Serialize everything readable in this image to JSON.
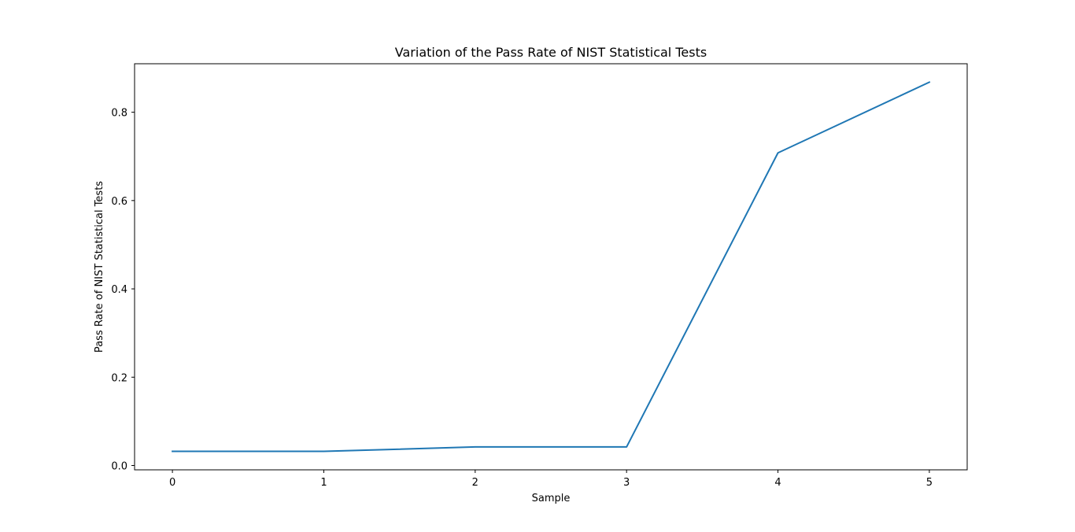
{
  "chart_data": {
    "type": "line",
    "title": "Variation of the Pass Rate of NIST Statistical Tests",
    "xlabel": "Sample",
    "ylabel": "Pass Rate of NIST Statistical Tests",
    "x": [
      0,
      1,
      2,
      3,
      4,
      5
    ],
    "series": [
      {
        "values": [
          0.032,
          0.032,
          0.042,
          0.042,
          0.708,
          0.868
        ]
      }
    ],
    "xticks": [
      "0",
      "1",
      "2",
      "3",
      "4",
      "5"
    ],
    "yticks": [
      "0.0",
      "0.2",
      "0.4",
      "0.6",
      "0.8"
    ],
    "xlim": [
      -0.25,
      5.25
    ],
    "ylim": [
      -0.0098,
      0.9098
    ],
    "grid": false,
    "colors": {
      "line": "#1f77b4",
      "axes": "#000000",
      "background": "#ffffff"
    }
  }
}
